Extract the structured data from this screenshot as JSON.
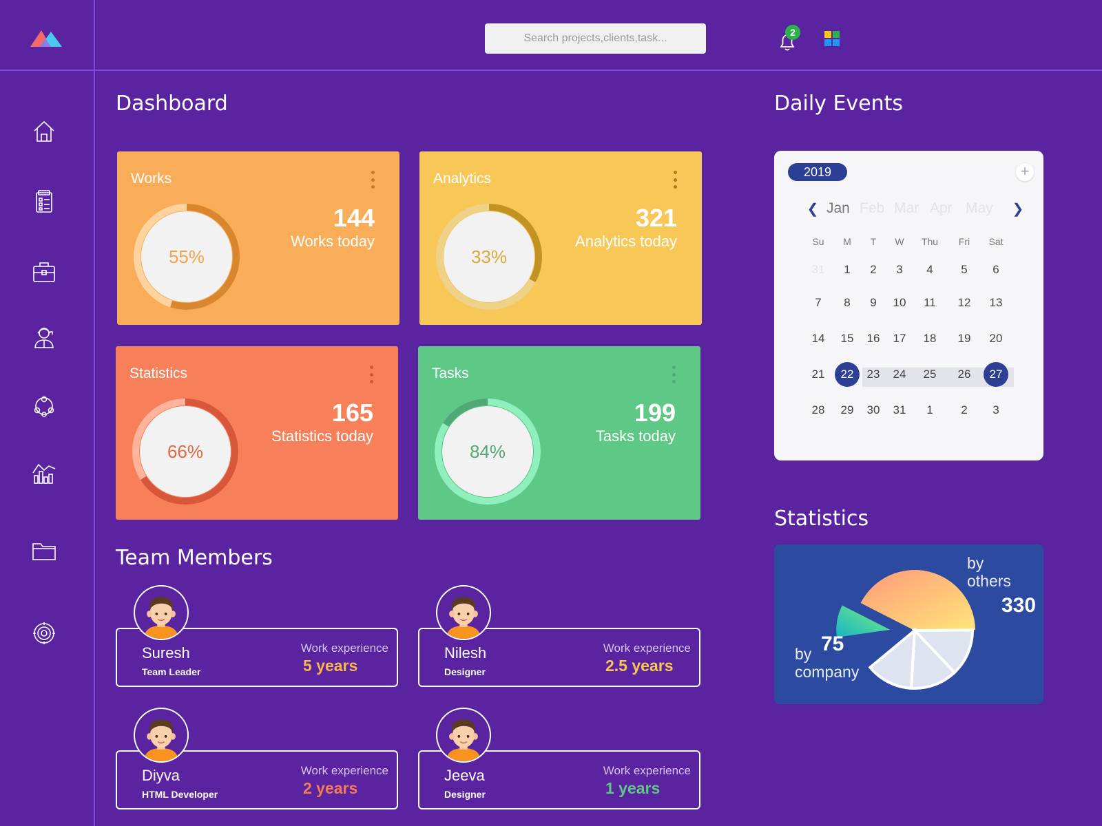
{
  "header": {
    "search_placeholder": "Search projects,clients,task...",
    "notification_count": "2"
  },
  "sidebar": {
    "items": [
      {
        "name": "home"
      },
      {
        "name": "tasks"
      },
      {
        "name": "projects"
      },
      {
        "name": "users"
      },
      {
        "name": "network"
      },
      {
        "name": "reports"
      },
      {
        "name": "files"
      },
      {
        "name": "settings"
      }
    ]
  },
  "dashboard": {
    "title": "Dashboard",
    "cards": [
      {
        "title": "Works",
        "percent": "55%",
        "progress": 55,
        "count": "144",
        "subtitle": "Works today",
        "color": "#f9ad58"
      },
      {
        "title": "Analytics",
        "percent": "33%",
        "progress": 33,
        "count": "321",
        "subtitle": "Analytics today",
        "color": "#f7c858"
      },
      {
        "title": "Statistics",
        "percent": "66%",
        "progress": 66,
        "count": "165",
        "subtitle": "Statistics today",
        "color": "#f7805a"
      },
      {
        "title": "Tasks",
        "percent": "84%",
        "progress": 84,
        "count": "199",
        "subtitle": "Tasks today",
        "color": "#5ec886"
      }
    ]
  },
  "team": {
    "title": "Team Members",
    "exp_label": "Work experience",
    "members": [
      {
        "name": "Suresh",
        "role": "Team Leader",
        "experience": "5 years",
        "exp_color": "#f9b64c"
      },
      {
        "name": "Nilesh",
        "role": "Designer",
        "experience": "2.5 years",
        "exp_color": "#f8c74e"
      },
      {
        "name": "Diyva",
        "role": "HTML Developer",
        "experience": "2 years",
        "exp_color": "#f47b58"
      },
      {
        "name": "Jeeva",
        "role": "Designer",
        "experience": "1 years",
        "exp_color": "#5ec886"
      }
    ]
  },
  "events": {
    "title": "Daily Events",
    "year": "2019",
    "months": [
      "Jan",
      "Feb",
      "Mar",
      "Apr",
      "May"
    ],
    "active_month": "Jan",
    "weekdays": [
      "Su",
      "M",
      "T",
      "W",
      "Thu",
      "Fri",
      "Sat"
    ],
    "weeks": [
      [
        "31",
        "1",
        "2",
        "3",
        "4",
        "5",
        "6"
      ],
      [
        "7",
        "8",
        "9",
        "10",
        "11",
        "12",
        "13"
      ],
      [
        "14",
        "15",
        "16",
        "17",
        "18",
        "19",
        "20"
      ],
      [
        "21",
        "22",
        "23",
        "24",
        "25",
        "26",
        "27"
      ],
      [
        "28",
        "29",
        "30",
        "31",
        "1",
        "2",
        "3"
      ]
    ],
    "range_start": "22",
    "range_end": "27"
  },
  "statistics": {
    "title": "Statistics",
    "by_others_label": "by others",
    "by_others_value": "330",
    "by_company_label": "by company",
    "by_company_value": "75"
  },
  "chart_data": {
    "type": "pie",
    "title": "Statistics",
    "series": [
      {
        "name": "by others",
        "value": 330
      },
      {
        "name": "by company",
        "value": 75
      }
    ]
  }
}
